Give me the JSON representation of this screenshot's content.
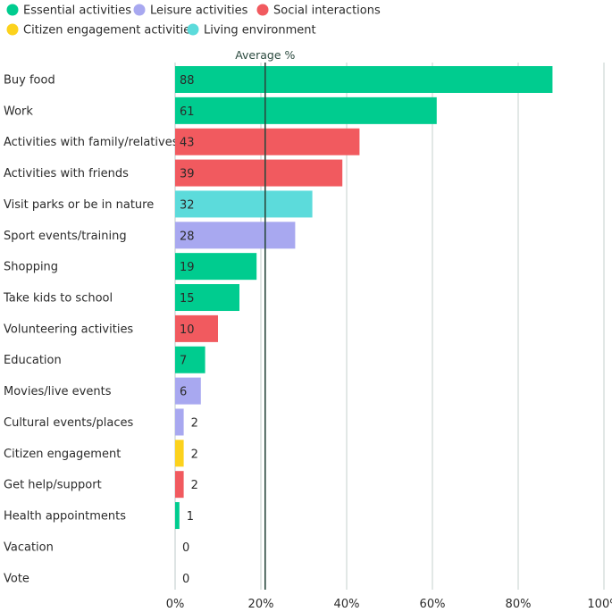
{
  "chart_data": {
    "type": "bar",
    "orientation": "horizontal",
    "title": "",
    "xlabel": "",
    "ylabel": "",
    "xlim": [
      0,
      100
    ],
    "x_ticks": [
      "0%",
      "20%",
      "40%",
      "60%",
      "80%",
      "100%"
    ],
    "average": {
      "label": "Average %",
      "value": 21
    },
    "legend": [
      {
        "key": "essential",
        "label": "Essential activities",
        "color": "#00cc8f"
      },
      {
        "key": "leisure",
        "label": "Leisure activities",
        "color": "#a8a8f0"
      },
      {
        "key": "social",
        "label": "Social interactions",
        "color": "#f15a5f"
      },
      {
        "key": "citizen",
        "label": "Citizen engagement activities",
        "color": "#fcd21d"
      },
      {
        "key": "living",
        "label": "Living environment",
        "color": "#5cdbdb"
      }
    ],
    "bars": [
      {
        "label": "Buy food",
        "value": 88,
        "group": "essential"
      },
      {
        "label": "Work",
        "value": 61,
        "group": "essential"
      },
      {
        "label": "Activities with family/relatives",
        "value": 43,
        "group": "social"
      },
      {
        "label": "Activities with friends",
        "value": 39,
        "group": "social"
      },
      {
        "label": "Visit parks or be in nature",
        "value": 32,
        "group": "living"
      },
      {
        "label": "Sport events/training",
        "value": 28,
        "group": "leisure"
      },
      {
        "label": "Shopping",
        "value": 19,
        "group": "essential"
      },
      {
        "label": "Take kids to school",
        "value": 15,
        "group": "essential"
      },
      {
        "label": "Volunteering activities",
        "value": 10,
        "group": "social"
      },
      {
        "label": "Education",
        "value": 7,
        "group": "essential"
      },
      {
        "label": "Movies/live events",
        "value": 6,
        "group": "leisure"
      },
      {
        "label": "Cultural events/places",
        "value": 2,
        "group": "leisure"
      },
      {
        "label": "Citizen engagement",
        "value": 2,
        "group": "citizen"
      },
      {
        "label": "Get help/support",
        "value": 2,
        "group": "social"
      },
      {
        "label": "Health appointments",
        "value": 1,
        "group": "essential"
      },
      {
        "label": "Vacation",
        "value": 0,
        "group": "essential"
      },
      {
        "label": "Vote",
        "value": 0,
        "group": "citizen"
      }
    ]
  }
}
